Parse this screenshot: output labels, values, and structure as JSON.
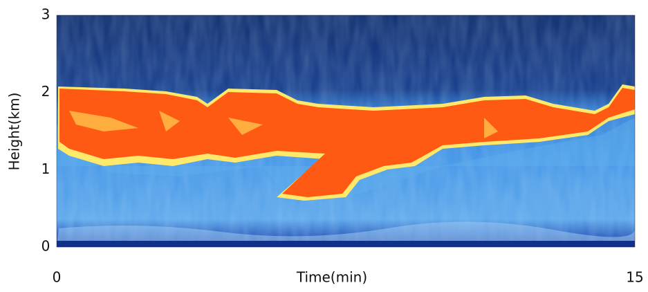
{
  "chart_data": {
    "type": "heatmap",
    "xlabel": "Time(min)",
    "ylabel": "Height(km)",
    "xlim": [
      0,
      15
    ],
    "ylim": [
      0,
      3
    ],
    "xticks": [
      0,
      15
    ],
    "yticks": [
      0,
      1,
      2,
      3
    ]
  }
}
